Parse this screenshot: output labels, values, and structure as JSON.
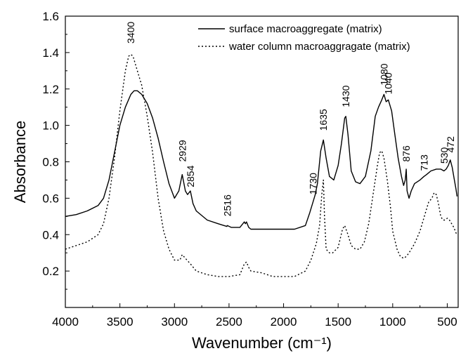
{
  "chart_data": {
    "type": "line",
    "xlabel": "Wavenumber (cm⁻¹)",
    "ylabel": "Absorbance",
    "xlim": [
      4000,
      400
    ],
    "ylim": [
      0.0,
      1.6
    ],
    "x_reversed": true,
    "xticks": [
      4000,
      3500,
      3000,
      2500,
      2000,
      1500,
      1000,
      500
    ],
    "yticks": [
      0.2,
      0.4,
      0.6,
      0.8,
      1.0,
      1.2,
      1.4,
      1.6
    ],
    "xtick_labels": [
      "4000",
      "3500",
      "3000",
      "2500",
      "2000",
      "1500",
      "1000",
      "500"
    ],
    "ytick_labels": [
      "0.2",
      "0.4",
      "0.6",
      "0.8",
      "1.0",
      "1.2",
      "1.4",
      "1.6"
    ],
    "grid": false,
    "legend": "top-right",
    "series": [
      {
        "name": "surface macroaggregate (matrix)",
        "style": "solid",
        "color": "#000000",
        "points": [
          [
            4000,
            0.5
          ],
          [
            3900,
            0.51
          ],
          [
            3800,
            0.53
          ],
          [
            3700,
            0.56
          ],
          [
            3650,
            0.6
          ],
          [
            3600,
            0.7
          ],
          [
            3550,
            0.85
          ],
          [
            3500,
            1.0
          ],
          [
            3450,
            1.1
          ],
          [
            3400,
            1.17
          ],
          [
            3370,
            1.19
          ],
          [
            3340,
            1.19
          ],
          [
            3300,
            1.17
          ],
          [
            3250,
            1.12
          ],
          [
            3200,
            1.04
          ],
          [
            3150,
            0.93
          ],
          [
            3100,
            0.8
          ],
          [
            3050,
            0.68
          ],
          [
            3000,
            0.6
          ],
          [
            2960,
            0.64
          ],
          [
            2929,
            0.73
          ],
          [
            2900,
            0.64
          ],
          [
            2880,
            0.62
          ],
          [
            2854,
            0.64
          ],
          [
            2830,
            0.57
          ],
          [
            2800,
            0.53
          ],
          [
            2700,
            0.48
          ],
          [
            2600,
            0.46
          ],
          [
            2520,
            0.445
          ],
          [
            2516,
            0.45
          ],
          [
            2480,
            0.44
          ],
          [
            2400,
            0.44
          ],
          [
            2360,
            0.47
          ],
          [
            2350,
            0.46
          ],
          [
            2340,
            0.47
          ],
          [
            2320,
            0.44
          ],
          [
            2300,
            0.43
          ],
          [
            2200,
            0.43
          ],
          [
            2100,
            0.43
          ],
          [
            2000,
            0.43
          ],
          [
            1900,
            0.43
          ],
          [
            1800,
            0.45
          ],
          [
            1760,
            0.52
          ],
          [
            1730,
            0.58
          ],
          [
            1710,
            0.62
          ],
          [
            1690,
            0.68
          ],
          [
            1660,
            0.86
          ],
          [
            1635,
            0.92
          ],
          [
            1610,
            0.82
          ],
          [
            1580,
            0.72
          ],
          [
            1540,
            0.7
          ],
          [
            1500,
            0.78
          ],
          [
            1470,
            0.9
          ],
          [
            1440,
            1.04
          ],
          [
            1430,
            1.05
          ],
          [
            1410,
            0.95
          ],
          [
            1380,
            0.75
          ],
          [
            1340,
            0.69
          ],
          [
            1300,
            0.68
          ],
          [
            1250,
            0.72
          ],
          [
            1200,
            0.86
          ],
          [
            1160,
            1.05
          ],
          [
            1130,
            1.1
          ],
          [
            1100,
            1.14
          ],
          [
            1080,
            1.17
          ],
          [
            1060,
            1.13
          ],
          [
            1040,
            1.14
          ],
          [
            1010,
            1.08
          ],
          [
            980,
            0.95
          ],
          [
            950,
            0.82
          ],
          [
            920,
            0.72
          ],
          [
            900,
            0.67
          ],
          [
            885,
            0.7
          ],
          [
            876,
            0.76
          ],
          [
            868,
            0.64
          ],
          [
            850,
            0.6
          ],
          [
            830,
            0.64
          ],
          [
            800,
            0.68
          ],
          [
            750,
            0.7
          ],
          [
            713,
            0.72
          ],
          [
            690,
            0.73
          ],
          [
            650,
            0.75
          ],
          [
            600,
            0.76
          ],
          [
            560,
            0.76
          ],
          [
            530,
            0.75
          ],
          [
            510,
            0.76
          ],
          [
            490,
            0.78
          ],
          [
            472,
            0.81
          ],
          [
            455,
            0.77
          ],
          [
            435,
            0.7
          ],
          [
            420,
            0.65
          ],
          [
            410,
            0.61
          ]
        ]
      },
      {
        "name": "water column macroaggragate (matrix)",
        "style": "dotted",
        "color": "#000000",
        "points": [
          [
            4000,
            0.32
          ],
          [
            3900,
            0.34
          ],
          [
            3800,
            0.36
          ],
          [
            3700,
            0.4
          ],
          [
            3650,
            0.46
          ],
          [
            3600,
            0.6
          ],
          [
            3550,
            0.82
          ],
          [
            3500,
            1.08
          ],
          [
            3450,
            1.3
          ],
          [
            3420,
            1.38
          ],
          [
            3400,
            1.39
          ],
          [
            3380,
            1.38
          ],
          [
            3350,
            1.32
          ],
          [
            3300,
            1.22
          ],
          [
            3250,
            1.05
          ],
          [
            3200,
            0.85
          ],
          [
            3150,
            0.6
          ],
          [
            3100,
            0.42
          ],
          [
            3050,
            0.32
          ],
          [
            3000,
            0.26
          ],
          [
            2950,
            0.26
          ],
          [
            2929,
            0.29
          ],
          [
            2900,
            0.27
          ],
          [
            2870,
            0.25
          ],
          [
            2854,
            0.24
          ],
          [
            2800,
            0.2
          ],
          [
            2700,
            0.18
          ],
          [
            2600,
            0.17
          ],
          [
            2500,
            0.17
          ],
          [
            2400,
            0.18
          ],
          [
            2360,
            0.24
          ],
          [
            2340,
            0.25
          ],
          [
            2320,
            0.22
          ],
          [
            2300,
            0.2
          ],
          [
            2200,
            0.19
          ],
          [
            2100,
            0.17
          ],
          [
            2000,
            0.17
          ],
          [
            1900,
            0.17
          ],
          [
            1800,
            0.2
          ],
          [
            1750,
            0.26
          ],
          [
            1700,
            0.35
          ],
          [
            1670,
            0.45
          ],
          [
            1650,
            0.62
          ],
          [
            1635,
            0.7
          ],
          [
            1625,
            0.5
          ],
          [
            1610,
            0.32
          ],
          [
            1580,
            0.3
          ],
          [
            1550,
            0.3
          ],
          [
            1500,
            0.33
          ],
          [
            1460,
            0.43
          ],
          [
            1440,
            0.45
          ],
          [
            1410,
            0.4
          ],
          [
            1380,
            0.34
          ],
          [
            1340,
            0.32
          ],
          [
            1300,
            0.32
          ],
          [
            1260,
            0.36
          ],
          [
            1220,
            0.46
          ],
          [
            1180,
            0.62
          ],
          [
            1140,
            0.78
          ],
          [
            1120,
            0.85
          ],
          [
            1100,
            0.86
          ],
          [
            1080,
            0.82
          ],
          [
            1050,
            0.7
          ],
          [
            1020,
            0.55
          ],
          [
            1000,
            0.42
          ],
          [
            960,
            0.32
          ],
          [
            930,
            0.28
          ],
          [
            900,
            0.27
          ],
          [
            876,
            0.28
          ],
          [
            850,
            0.3
          ],
          [
            800,
            0.35
          ],
          [
            750,
            0.42
          ],
          [
            700,
            0.52
          ],
          [
            670,
            0.58
          ],
          [
            640,
            0.6
          ],
          [
            620,
            0.63
          ],
          [
            600,
            0.62
          ],
          [
            580,
            0.57
          ],
          [
            560,
            0.5
          ],
          [
            540,
            0.48
          ],
          [
            520,
            0.48
          ],
          [
            500,
            0.49
          ],
          [
            480,
            0.48
          ],
          [
            460,
            0.46
          ],
          [
            440,
            0.44
          ],
          [
            420,
            0.41
          ],
          [
            410,
            0.4
          ]
        ]
      }
    ],
    "annotations": [
      {
        "label": "3400",
        "x": 3400,
        "y": 1.45
      },
      {
        "label": "2929",
        "x": 2929,
        "y": 0.8
      },
      {
        "label": "2854",
        "x": 2854,
        "y": 0.66
      },
      {
        "label": "2516",
        "x": 2516,
        "y": 0.5
      },
      {
        "label": "1730",
        "x": 1730,
        "y": 0.62
      },
      {
        "label": "1635",
        "x": 1635,
        "y": 0.97
      },
      {
        "label": "1430",
        "x": 1430,
        "y": 1.1
      },
      {
        "label": "1080",
        "x": 1080,
        "y": 1.22
      },
      {
        "label": "1040",
        "x": 1040,
        "y": 1.17
      },
      {
        "label": "876",
        "x": 876,
        "y": 0.8
      },
      {
        "label": "713",
        "x": 713,
        "y": 0.75
      },
      {
        "label": "530",
        "x": 530,
        "y": 0.79
      },
      {
        "label": "472",
        "x": 472,
        "y": 0.85
      }
    ]
  }
}
